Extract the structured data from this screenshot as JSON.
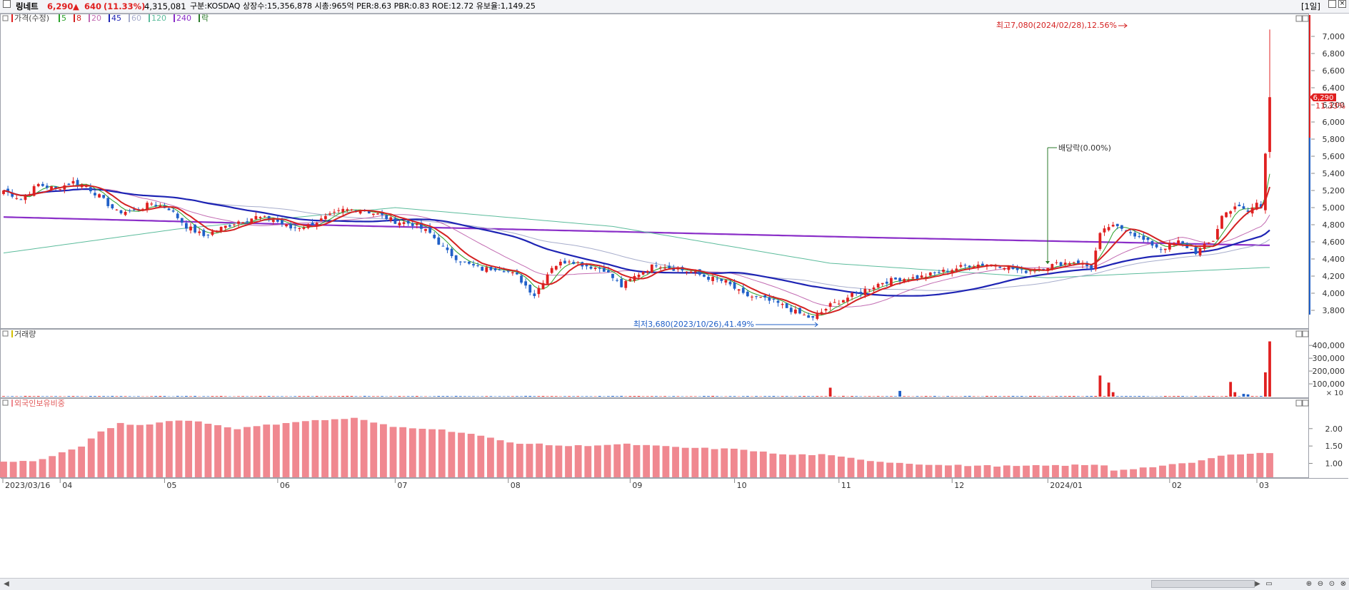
{
  "header": {
    "name": "링네트",
    "price": "6,290",
    "arrow": "▲",
    "change": "640",
    "change_pct": "(11.33%)",
    "volume": "4,315,081",
    "info": "구분:KOSDAQ 상장수:15,356,878 시총:965억 PER:8.63 PBR:0.83 ROE:12.72 유보율:1,149.25",
    "period": "[1일]"
  },
  "colors": {
    "up": "#e02020",
    "down": "#2060c8",
    "ma5": "#2aa12a",
    "ma8": "#d42222",
    "ma20": "#c26cb2",
    "ma45": "#1e24b4",
    "ma60": "#a7adcc",
    "ma120": "#5cbc9c",
    "ma240": "#8a2ec8",
    "bars": "#f08890"
  },
  "legend": {
    "price_label": "가격(수정)",
    "items": [
      {
        "label": "5",
        "color": "#2aa12a"
      },
      {
        "label": "8",
        "color": "#d42222"
      },
      {
        "label": "20",
        "color": "#c26cb2"
      },
      {
        "label": "45",
        "color": "#1e24b4"
      },
      {
        "label": "60",
        "color": "#a7adcc"
      },
      {
        "label": "120",
        "color": "#5cbc9c"
      },
      {
        "label": "240",
        "color": "#8a2ec8"
      },
      {
        "label": "락",
        "color": "#2a7a2a"
      }
    ]
  },
  "annotations": {
    "high": "최고7,080(2024/02/28),12.56%",
    "low": "최저3,680(2023/10/26),41.49%",
    "dividend": "배당락(0.00%)",
    "last_price": "6,290",
    "last_pct": "11.33%"
  },
  "panels": {
    "volume_title": "거래량",
    "volume_unit": "× 10",
    "foreign_title": "외국인보유비중"
  },
  "chart_data": [
    {
      "type": "candlestick",
      "title": "가격(수정)",
      "x_labels": [
        "2023/03/16",
        "04",
        "05",
        "06",
        "07",
        "08",
        "09",
        "10",
        "11",
        "12",
        "2024/01",
        "02",
        "03"
      ],
      "y_ticks": [
        3800,
        4000,
        4200,
        4400,
        4600,
        4800,
        5000,
        5200,
        5400,
        5600,
        5800,
        6000,
        6200,
        6400,
        6600,
        6800,
        7000
      ],
      "ylim": [
        3600,
        7250
      ],
      "close_path": [
        [
          0,
          5200
        ],
        [
          4,
          5100
        ],
        [
          8,
          5270
        ],
        [
          12,
          5220
        ],
        [
          16,
          5300
        ],
        [
          19,
          5250
        ],
        [
          22,
          5130
        ],
        [
          26,
          4950
        ],
        [
          30,
          4960
        ],
        [
          34,
          5050
        ],
        [
          38,
          4990
        ],
        [
          42,
          4780
        ],
        [
          46,
          4670
        ],
        [
          50,
          4760
        ],
        [
          54,
          4840
        ],
        [
          58,
          4890
        ],
        [
          62,
          4860
        ],
        [
          66,
          4760
        ],
        [
          70,
          4790
        ],
        [
          74,
          4880
        ],
        [
          78,
          4970
        ],
        [
          82,
          4980
        ],
        [
          86,
          4920
        ],
        [
          90,
          4840
        ],
        [
          94,
          4810
        ],
        [
          98,
          4700
        ],
        [
          102,
          4480
        ],
        [
          106,
          4350
        ],
        [
          110,
          4280
        ],
        [
          114,
          4300
        ],
        [
          118,
          4200
        ],
        [
          122,
          3980
        ],
        [
          126,
          4310
        ],
        [
          130,
          4390
        ],
        [
          134,
          4320
        ],
        [
          138,
          4280
        ],
        [
          142,
          4080
        ],
        [
          146,
          4230
        ],
        [
          150,
          4340
        ],
        [
          154,
          4290
        ],
        [
          158,
          4250
        ],
        [
          162,
          4180
        ],
        [
          166,
          4130
        ],
        [
          170,
          3980
        ],
        [
          174,
          3940
        ],
        [
          178,
          3880
        ],
        [
          182,
          3780
        ],
        [
          186,
          3700
        ],
        [
          190,
          3860
        ],
        [
          194,
          3950
        ],
        [
          198,
          4040
        ],
        [
          202,
          4130
        ],
        [
          206,
          4170
        ],
        [
          210,
          4180
        ],
        [
          214,
          4230
        ],
        [
          218,
          4280
        ],
        [
          222,
          4330
        ],
        [
          226,
          4340
        ],
        [
          230,
          4320
        ],
        [
          234,
          4250
        ],
        [
          238,
          4290
        ],
        [
          242,
          4340
        ],
        [
          246,
          4370
        ],
        [
          250,
          4300
        ],
        [
          252,
          4680
        ],
        [
          254,
          4780
        ],
        [
          258,
          4750
        ],
        [
          262,
          4620
        ],
        [
          266,
          4520
        ],
        [
          270,
          4600
        ],
        [
          274,
          4480
        ],
        [
          278,
          4620
        ],
        [
          280,
          4900
        ],
        [
          283,
          5020
        ],
        [
          286,
          4950
        ],
        [
          288,
          5050
        ],
        [
          289,
          5000
        ],
        [
          290,
          5630
        ],
        [
          291,
          6290
        ]
      ],
      "last_candle": {
        "date": "2024/02/28",
        "open": 5650,
        "high": 7080,
        "low": 5580,
        "close": 6290
      },
      "high": {
        "date": "2024/02/28",
        "value": 7080,
        "pct": 12.56
      },
      "low": {
        "date": "2023/10/26",
        "value": 3680,
        "pct": 41.49
      },
      "dividend_date": "2023/12/27",
      "moving_averages": [
        5,
        8,
        20,
        45,
        60,
        120,
        240
      ],
      "ma240_path": [
        [
          0,
          4890
        ],
        [
          70,
          4800
        ],
        [
          140,
          4720
        ],
        [
          200,
          4650
        ],
        [
          290,
          4560
        ]
      ],
      "ma120_path": [
        [
          0,
          4470
        ],
        [
          40,
          4750
        ],
        [
          90,
          5000
        ],
        [
          140,
          4780
        ],
        [
          190,
          4350
        ],
        [
          240,
          4180
        ],
        [
          290,
          4300
        ]
      ]
    },
    {
      "type": "bar",
      "title": "거래량",
      "unit": "× 10",
      "y_ticks": [
        100000,
        200000,
        300000,
        400000
      ],
      "ylim": [
        0,
        440000
      ],
      "baseline_value": 4000,
      "spikes": [
        {
          "index": 190,
          "value": 70000
        },
        {
          "index": 206,
          "value": 45000
        },
        {
          "index": 252,
          "value": 165000
        },
        {
          "index": 254,
          "value": 110000
        },
        {
          "index": 255,
          "value": 35000
        },
        {
          "index": 282,
          "value": 115000
        },
        {
          "index": 283,
          "value": 35000
        },
        {
          "index": 285,
          "value": 22000
        },
        {
          "index": 286,
          "value": 18000
        },
        {
          "index": 290,
          "value": 190000
        },
        {
          "index": 291,
          "value": 431508
        }
      ]
    },
    {
      "type": "bar",
      "title": "외국인보유비중",
      "y_ticks": [
        1.0,
        1.5,
        2.0
      ],
      "ylim": [
        0.6,
        2.55
      ],
      "bar_count": 130,
      "values_path": [
        [
          0,
          1.06
        ],
        [
          3,
          1.06
        ],
        [
          5,
          1.2
        ],
        [
          8,
          1.5
        ],
        [
          10,
          1.9
        ],
        [
          12,
          2.15
        ],
        [
          14,
          2.1
        ],
        [
          18,
          2.25
        ],
        [
          20,
          2.2
        ],
        [
          24,
          2.0
        ],
        [
          30,
          2.2
        ],
        [
          36,
          2.3
        ],
        [
          40,
          2.05
        ],
        [
          44,
          2.0
        ],
        [
          48,
          1.85
        ],
        [
          52,
          1.6
        ],
        [
          58,
          1.5
        ],
        [
          64,
          1.55
        ],
        [
          70,
          1.45
        ],
        [
          76,
          1.4
        ],
        [
          80,
          1.25
        ],
        [
          84,
          1.25
        ],
        [
          90,
          1.05
        ],
        [
          96,
          0.95
        ],
        [
          104,
          0.92
        ],
        [
          110,
          0.95
        ],
        [
          113,
          0.95
        ],
        [
          114,
          0.8
        ],
        [
          118,
          0.9
        ],
        [
          122,
          1.02
        ],
        [
          126,
          1.27
        ],
        [
          130,
          1.3
        ]
      ]
    }
  ]
}
